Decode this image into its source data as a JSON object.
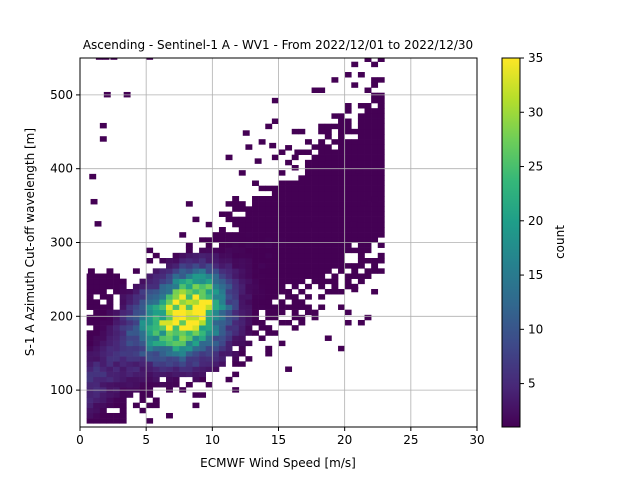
{
  "chart_data": {
    "type": "heatmap",
    "title": "Ascending - Sentinel-1 A - WV1 - From 2022/12/01 to 2022/12/30",
    "xlabel": "ECMWF Wind Speed [m/s]",
    "ylabel": "S-1 A Azimuth Cut-off wavelength [m]",
    "colorbar_label": "count",
    "xlim": [
      0,
      30
    ],
    "ylim": [
      50,
      550
    ],
    "clim": [
      1,
      35
    ],
    "colormap": "viridis",
    "grid": true,
    "x_ticks": [
      "0",
      "5",
      "10",
      "15",
      "20",
      "25",
      "30"
    ],
    "y_ticks": [
      "100",
      "200",
      "300",
      "400",
      "500"
    ],
    "colorbar_ticks": [
      "5",
      "10",
      "15",
      "20",
      "25",
      "30",
      "35"
    ],
    "bin_width_x": 0.5,
    "bin_width_y": 7,
    "density_model": {
      "description": "2D histogram of counts concentrated along a diagonal band",
      "peak": {
        "x": 7.5,
        "y": 190,
        "count": 35
      },
      "secondary_peak": {
        "x": 9.0,
        "y": 230,
        "count": 28
      },
      "band": {
        "slope": 13.0,
        "intercept": 100
      },
      "extent": {
        "x": [
          0.5,
          23
        ],
        "y": [
          55,
          550
        ]
      }
    },
    "colors": {
      "viridis": [
        "#440154",
        "#482878",
        "#3e4989",
        "#31688e",
        "#26828e",
        "#1f9e89",
        "#35b779",
        "#6ece58",
        "#b5de2b",
        "#fde725"
      ],
      "grid": "#b0b0b0"
    }
  }
}
